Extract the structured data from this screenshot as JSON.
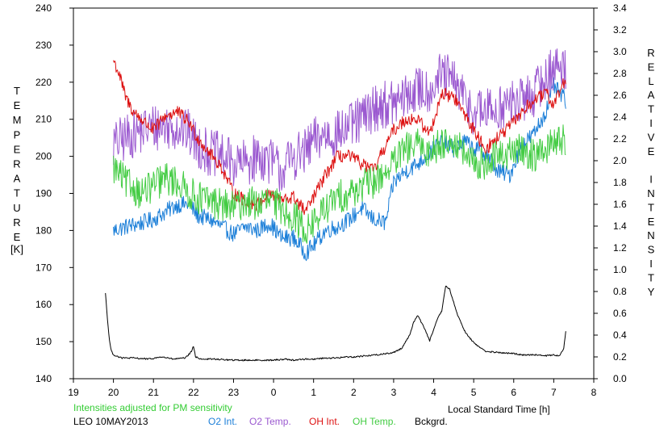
{
  "chart_data": {
    "type": "line",
    "ylabel_left_letters": [
      "T",
      "E",
      "M",
      "P",
      "E",
      "R",
      "A",
      "T",
      "U",
      "R",
      "E"
    ],
    "ylabel_left_unit": "[K]",
    "ylabel_right_letters": [
      "R",
      "E",
      "L",
      "A",
      "T",
      "I",
      "V",
      "E",
      "",
      "I",
      "N",
      "T",
      "E",
      "N",
      "S",
      "I",
      "T",
      "Y"
    ],
    "xlabel": "Local Standard Time [h]",
    "note": "Intensities adjusted for PM sensitivity",
    "station": "LEO 10MAY2013",
    "x_ticks": [
      "19",
      "20",
      "21",
      "22",
      "23",
      "0",
      "1",
      "2",
      "3",
      "4",
      "5",
      "6",
      "7",
      "8"
    ],
    "x_range": [
      19,
      32
    ],
    "y_left_range": [
      140,
      240
    ],
    "y_left_ticks": [
      "140",
      "150",
      "160",
      "170",
      "180",
      "190",
      "200",
      "210",
      "220",
      "230",
      "240"
    ],
    "y_right_range": [
      0.0,
      3.4
    ],
    "y_right_ticks": [
      "0.0",
      "0.2",
      "0.4",
      "0.6",
      "0.8",
      "1.0",
      "1.2",
      "1.4",
      "1.6",
      "1.8",
      "2.0",
      "2.2",
      "2.4",
      "2.6",
      "2.8",
      "3.0",
      "3.2",
      "3.4"
    ],
    "grid": false,
    "series": [
      {
        "name": "O2 Int.",
        "axis": "left",
        "color": "#1c7fd8",
        "noise": 2.3,
        "x": [
          20.0,
          20.3,
          20.7,
          21.0,
          21.3,
          21.6,
          21.9,
          22.1,
          22.4,
          22.7,
          23.0,
          23.3,
          23.6,
          23.9,
          24.2,
          24.5,
          24.8,
          25.0,
          25.3,
          25.6,
          25.9,
          26.2,
          26.5,
          26.8,
          27.0,
          27.3,
          27.6,
          27.9,
          28.2,
          28.5,
          28.8,
          29.0,
          29.3,
          29.6,
          29.9,
          30.2,
          30.5,
          30.8,
          31.0,
          31.3
        ],
        "y": [
          180,
          181,
          182,
          183,
          185,
          187,
          187,
          184,
          183,
          181,
          179,
          181,
          180,
          182,
          178,
          178,
          174,
          176,
          180,
          181,
          183,
          186,
          183,
          182,
          193,
          196,
          198,
          201,
          204,
          202,
          204,
          202,
          201,
          196,
          195,
          203,
          206,
          212,
          219,
          215
        ]
      },
      {
        "name": "O2 Temp.",
        "axis": "left",
        "color": "#9b59d0",
        "noise": 6.5,
        "x": [
          20.0,
          20.3,
          20.7,
          21.0,
          21.3,
          21.6,
          21.9,
          22.1,
          22.4,
          22.7,
          23.0,
          23.3,
          23.6,
          23.9,
          24.2,
          24.5,
          24.8,
          25.0,
          25.3,
          25.6,
          25.9,
          26.2,
          26.5,
          26.8,
          27.0,
          27.3,
          27.6,
          27.9,
          28.2,
          28.5,
          28.8,
          29.0,
          29.3,
          29.6,
          29.9,
          30.2,
          30.5,
          30.8,
          31.0,
          31.3
        ],
        "y": [
          203,
          205,
          207,
          208,
          208,
          208,
          206,
          203,
          201,
          200,
          198,
          198,
          200,
          199,
          196,
          200,
          201,
          204,
          206,
          206,
          208,
          210,
          213,
          214,
          214,
          216,
          218,
          218,
          222,
          220,
          215,
          212,
          212,
          213,
          214,
          215,
          217,
          221,
          224,
          224
        ]
      },
      {
        "name": "OH Int.",
        "axis": "left",
        "color": "#dd1111",
        "noise": 1.8,
        "x": [
          20.0,
          20.15,
          20.3,
          20.5,
          20.7,
          21.0,
          21.3,
          21.6,
          21.9,
          22.1,
          22.4,
          22.7,
          23.0,
          23.3,
          23.6,
          23.9,
          24.2,
          24.5,
          24.8,
          25.0,
          25.3,
          25.6,
          25.9,
          26.2,
          26.5,
          26.8,
          27.0,
          27.3,
          27.6,
          27.9,
          28.2,
          28.5,
          28.8,
          29.0,
          29.3,
          29.6,
          29.9,
          30.2,
          30.5,
          30.8,
          31.0,
          31.3
        ],
        "y": [
          226,
          222,
          216,
          212,
          210,
          207,
          211,
          212,
          209,
          205,
          201,
          197,
          190,
          188,
          187,
          190,
          188,
          189,
          185,
          189,
          195,
          200,
          200,
          198,
          196,
          203,
          207,
          210,
          210,
          206,
          217,
          216,
          211,
          207,
          202,
          205,
          208,
          212,
          215,
          217,
          214,
          221
        ]
      },
      {
        "name": "OH Temp.",
        "axis": "left",
        "color": "#44cc44",
        "noise": 4.5,
        "x": [
          20.0,
          20.3,
          20.7,
          21.0,
          21.3,
          21.6,
          21.9,
          22.1,
          22.4,
          22.7,
          23.0,
          23.3,
          23.6,
          23.9,
          24.2,
          24.5,
          24.8,
          25.0,
          25.3,
          25.6,
          25.9,
          26.2,
          26.5,
          26.8,
          27.0,
          27.3,
          27.6,
          27.9,
          28.2,
          28.5,
          28.8,
          29.0,
          29.3,
          29.6,
          29.9,
          30.2,
          30.5,
          30.8,
          31.0,
          31.3
        ],
        "y": [
          197,
          193,
          190,
          192,
          194,
          193,
          190,
          189,
          188,
          187,
          186,
          188,
          187,
          188,
          186,
          184,
          180,
          182,
          186,
          189,
          190,
          192,
          193,
          196,
          198,
          202,
          203,
          201,
          204,
          204,
          200,
          198,
          198,
          200,
          201,
          202,
          200,
          202,
          204,
          204
        ]
      },
      {
        "name": "Bckgrd.",
        "axis": "right",
        "color": "#000000",
        "noise": 0.007,
        "x": [
          19.8,
          19.85,
          19.9,
          19.95,
          20.0,
          20.2,
          20.5,
          20.9,
          21.2,
          21.5,
          21.8,
          21.95,
          22.0,
          22.05,
          22.2,
          22.5,
          23.0,
          23.5,
          24.0,
          24.3,
          24.5,
          24.8,
          25.0,
          25.3,
          25.6,
          25.8,
          26.0,
          26.3,
          26.6,
          27.0,
          27.2,
          27.4,
          27.5,
          27.6,
          27.75,
          27.9,
          28.0,
          28.1,
          28.2,
          28.25,
          28.3,
          28.4,
          28.6,
          28.8,
          29.0,
          29.3,
          29.6,
          30.0,
          30.2,
          30.5,
          30.8,
          31.0,
          31.15,
          31.25,
          31.3
        ],
        "y": [
          0.79,
          0.55,
          0.35,
          0.25,
          0.22,
          0.19,
          0.19,
          0.18,
          0.2,
          0.18,
          0.19,
          0.25,
          0.3,
          0.2,
          0.18,
          0.18,
          0.17,
          0.17,
          0.17,
          0.18,
          0.17,
          0.18,
          0.18,
          0.19,
          0.19,
          0.2,
          0.2,
          0.21,
          0.22,
          0.24,
          0.28,
          0.4,
          0.52,
          0.58,
          0.48,
          0.35,
          0.45,
          0.55,
          0.62,
          0.73,
          0.85,
          0.82,
          0.58,
          0.42,
          0.33,
          0.25,
          0.24,
          0.23,
          0.22,
          0.22,
          0.21,
          0.22,
          0.21,
          0.28,
          0.43
        ]
      }
    ]
  },
  "legend_colors": {
    "O2 Int.": "#1c7fd8",
    "O2 Temp.": "#9b59d0",
    "OH Int.": "#dd1111",
    "OH Temp.": "#44cc44",
    "Bckgrd.": "#000000",
    "note": "#33cc33"
  }
}
